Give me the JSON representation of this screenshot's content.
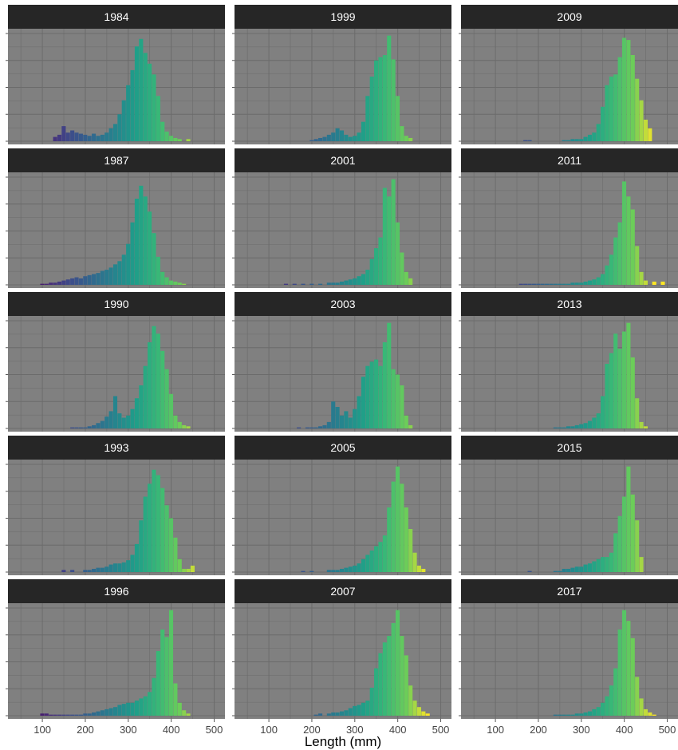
{
  "chart_data": {
    "type": "bar",
    "subtype": "histogram-facets",
    "xlabel": "Length (mm)",
    "ylabel": "",
    "xlim": [
      20,
      525
    ],
    "x_ticks": [
      100,
      200,
      300,
      400,
      500
    ],
    "bin_width": 10,
    "color_scale": "viridis",
    "colors": {
      "panel_bg": "#808080",
      "grid": "#6b6b6b",
      "strip_bg": "#262626",
      "strip_text": "#ffffff"
    },
    "grid": true,
    "legend": "none",
    "panels": [
      {
        "year": "1984",
        "x": [
          130,
          140,
          150,
          160,
          170,
          180,
          190,
          200,
          210,
          220,
          230,
          240,
          250,
          260,
          270,
          280,
          290,
          300,
          310,
          320,
          330,
          340,
          350,
          360,
          370,
          380,
          390,
          400,
          410,
          420,
          440
        ],
        "values": [
          4,
          6,
          14,
          8,
          10,
          8,
          7,
          6,
          5,
          7,
          5,
          6,
          8,
          12,
          16,
          25,
          38,
          52,
          66,
          88,
          95,
          82,
          72,
          62,
          42,
          18,
          9,
          5,
          3,
          2,
          2
        ]
      },
      {
        "year": "1987",
        "x": [
          100,
          110,
          120,
          130,
          140,
          150,
          160,
          170,
          180,
          190,
          200,
          210,
          220,
          230,
          240,
          250,
          260,
          270,
          280,
          290,
          300,
          310,
          320,
          330,
          340,
          350,
          360,
          370,
          380,
          390,
          400,
          410,
          420,
          430
        ],
        "values": [
          1,
          1,
          2,
          2,
          3,
          4,
          5,
          6,
          7,
          6,
          8,
          9,
          10,
          11,
          13,
          14,
          16,
          19,
          22,
          28,
          38,
          58,
          80,
          92,
          82,
          68,
          48,
          26,
          12,
          7,
          4,
          3,
          2,
          1
        ]
      },
      {
        "year": "1990",
        "x": [
          170,
          180,
          190,
          200,
          210,
          220,
          230,
          240,
          250,
          260,
          270,
          280,
          290,
          300,
          310,
          320,
          330,
          340,
          350,
          360,
          370,
          380,
          390,
          400,
          410,
          420,
          430,
          440
        ],
        "values": [
          1,
          1,
          1,
          1,
          2,
          3,
          5,
          7,
          11,
          16,
          30,
          14,
          10,
          12,
          18,
          28,
          40,
          58,
          80,
          95,
          88,
          72,
          55,
          32,
          12,
          6,
          3,
          2
        ]
      },
      {
        "year": "1993",
        "x": [
          150,
          170,
          200,
          210,
          220,
          230,
          240,
          250,
          260,
          270,
          280,
          290,
          300,
          310,
          320,
          330,
          340,
          350,
          360,
          370,
          380,
          390,
          400,
          410,
          420,
          430,
          440,
          450
        ],
        "values": [
          2,
          2,
          2,
          2,
          3,
          4,
          4,
          5,
          7,
          8,
          8,
          9,
          11,
          16,
          26,
          48,
          70,
          82,
          95,
          90,
          78,
          62,
          50,
          32,
          12,
          3,
          3,
          6
        ]
      },
      {
        "year": "1996",
        "x": [
          100,
          110,
          120,
          130,
          140,
          150,
          160,
          170,
          180,
          190,
          200,
          210,
          220,
          230,
          240,
          250,
          260,
          270,
          280,
          290,
          300,
          310,
          320,
          330,
          340,
          350,
          360,
          370,
          380,
          390,
          400,
          410,
          420,
          430,
          440
        ],
        "values": [
          2,
          2,
          1,
          1,
          1,
          1,
          1,
          1,
          1,
          1,
          2,
          2,
          3,
          4,
          5,
          6,
          7,
          8,
          10,
          11,
          12,
          12,
          14,
          16,
          18,
          22,
          35,
          60,
          80,
          73,
          98,
          30,
          12,
          5,
          2
        ]
      },
      {
        "year": "1999",
        "x": [
          200,
          210,
          220,
          230,
          240,
          250,
          260,
          270,
          280,
          290,
          300,
          310,
          320,
          330,
          340,
          350,
          360,
          370,
          380,
          390,
          400,
          410,
          420,
          430
        ],
        "values": [
          1,
          2,
          3,
          4,
          6,
          8,
          12,
          10,
          6,
          4,
          5,
          8,
          18,
          42,
          60,
          75,
          78,
          80,
          98,
          76,
          42,
          14,
          5,
          3
        ]
      },
      {
        "year": "2001",
        "x": [
          140,
          160,
          180,
          200,
          220,
          240,
          250,
          260,
          270,
          280,
          290,
          300,
          310,
          320,
          330,
          340,
          350,
          360,
          370,
          380,
          390,
          400,
          410,
          420,
          430
        ],
        "values": [
          1,
          1,
          1,
          1,
          1,
          2,
          2,
          2,
          3,
          4,
          5,
          6,
          8,
          10,
          14,
          24,
          34,
          44,
          90,
          82,
          98,
          58,
          30,
          12,
          6
        ]
      },
      {
        "year": "2003",
        "x": [
          170,
          190,
          200,
          210,
          220,
          230,
          240,
          250,
          260,
          270,
          280,
          290,
          300,
          310,
          320,
          330,
          340,
          350,
          360,
          370,
          380,
          390,
          400,
          410,
          420,
          430
        ],
        "values": [
          1,
          1,
          1,
          1,
          2,
          3,
          6,
          25,
          20,
          12,
          16,
          10,
          18,
          30,
          48,
          58,
          62,
          64,
          58,
          80,
          98,
          55,
          50,
          40,
          12,
          3
        ]
      },
      {
        "year": "2005",
        "x": [
          180,
          200,
          240,
          250,
          260,
          270,
          280,
          290,
          300,
          310,
          320,
          330,
          340,
          350,
          360,
          370,
          380,
          390,
          400,
          410,
          420,
          430,
          440,
          450,
          460
        ],
        "values": [
          1,
          1,
          2,
          2,
          2,
          3,
          4,
          5,
          6,
          8,
          12,
          16,
          20,
          24,
          28,
          34,
          60,
          84,
          98,
          82,
          60,
          40,
          18,
          6,
          3
        ]
      },
      {
        "year": "2007",
        "x": [
          210,
          220,
          240,
          250,
          260,
          270,
          280,
          290,
          300,
          310,
          320,
          330,
          340,
          350,
          360,
          370,
          380,
          390,
          400,
          410,
          420,
          430,
          440,
          450,
          460,
          470
        ],
        "values": [
          1,
          2,
          2,
          3,
          3,
          4,
          5,
          7,
          9,
          10,
          12,
          14,
          26,
          44,
          58,
          68,
          74,
          86,
          98,
          74,
          56,
          28,
          14,
          8,
          4,
          2
        ]
      },
      {
        "year": "2009",
        "x": [
          170,
          180,
          260,
          270,
          280,
          290,
          300,
          310,
          320,
          330,
          340,
          350,
          360,
          370,
          380,
          390,
          400,
          410,
          420,
          430,
          440,
          450,
          460
        ],
        "values": [
          1,
          1,
          1,
          1,
          2,
          2,
          2,
          4,
          6,
          8,
          16,
          32,
          52,
          60,
          62,
          78,
          96,
          94,
          80,
          58,
          38,
          20,
          12
        ]
      },
      {
        "year": "2011",
        "x": [
          160,
          170,
          180,
          190,
          200,
          210,
          220,
          230,
          240,
          250,
          260,
          270,
          280,
          290,
          300,
          310,
          320,
          330,
          340,
          350,
          360,
          370,
          380,
          390,
          400,
          410,
          420,
          430,
          440,
          450,
          470,
          490
        ],
        "values": [
          1,
          1,
          1,
          1,
          1,
          1,
          1,
          1,
          1,
          1,
          1,
          1,
          2,
          2,
          2,
          3,
          4,
          5,
          7,
          10,
          18,
          28,
          44,
          58,
          96,
          82,
          70,
          36,
          12,
          4,
          3,
          3
        ]
      },
      {
        "year": "2013",
        "x": [
          240,
          250,
          260,
          270,
          280,
          290,
          300,
          310,
          320,
          330,
          340,
          350,
          360,
          370,
          380,
          390,
          400,
          410,
          420,
          430,
          440,
          450
        ],
        "values": [
          1,
          1,
          1,
          2,
          2,
          3,
          4,
          5,
          7,
          10,
          14,
          30,
          60,
          70,
          88,
          74,
          90,
          98,
          66,
          28,
          6,
          2
        ]
      },
      {
        "year": "2015",
        "x": [
          180,
          240,
          250,
          260,
          270,
          280,
          290,
          300,
          310,
          320,
          330,
          340,
          350,
          360,
          370,
          380,
          390,
          400,
          410,
          420,
          430,
          440
        ],
        "values": [
          1,
          1,
          1,
          3,
          3,
          4,
          5,
          5,
          7,
          8,
          10,
          12,
          14,
          14,
          18,
          36,
          52,
          70,
          98,
          72,
          48,
          14
        ]
      },
      {
        "year": "2017",
        "x": [
          240,
          250,
          260,
          270,
          280,
          290,
          300,
          310,
          320,
          330,
          340,
          350,
          360,
          370,
          380,
          390,
          400,
          410,
          420,
          430,
          440,
          450,
          460,
          470
        ],
        "values": [
          1,
          1,
          1,
          1,
          1,
          2,
          2,
          3,
          4,
          6,
          8,
          12,
          18,
          28,
          44,
          80,
          98,
          88,
          72,
          36,
          16,
          6,
          3,
          1
        ]
      }
    ],
    "columns": [
      [
        "1984",
        "1987",
        "1990",
        "1993",
        "1996"
      ],
      [
        "1999",
        "2001",
        "2003",
        "2005",
        "2007"
      ],
      [
        "2009",
        "2011",
        "2013",
        "2015",
        "2017"
      ]
    ]
  }
}
